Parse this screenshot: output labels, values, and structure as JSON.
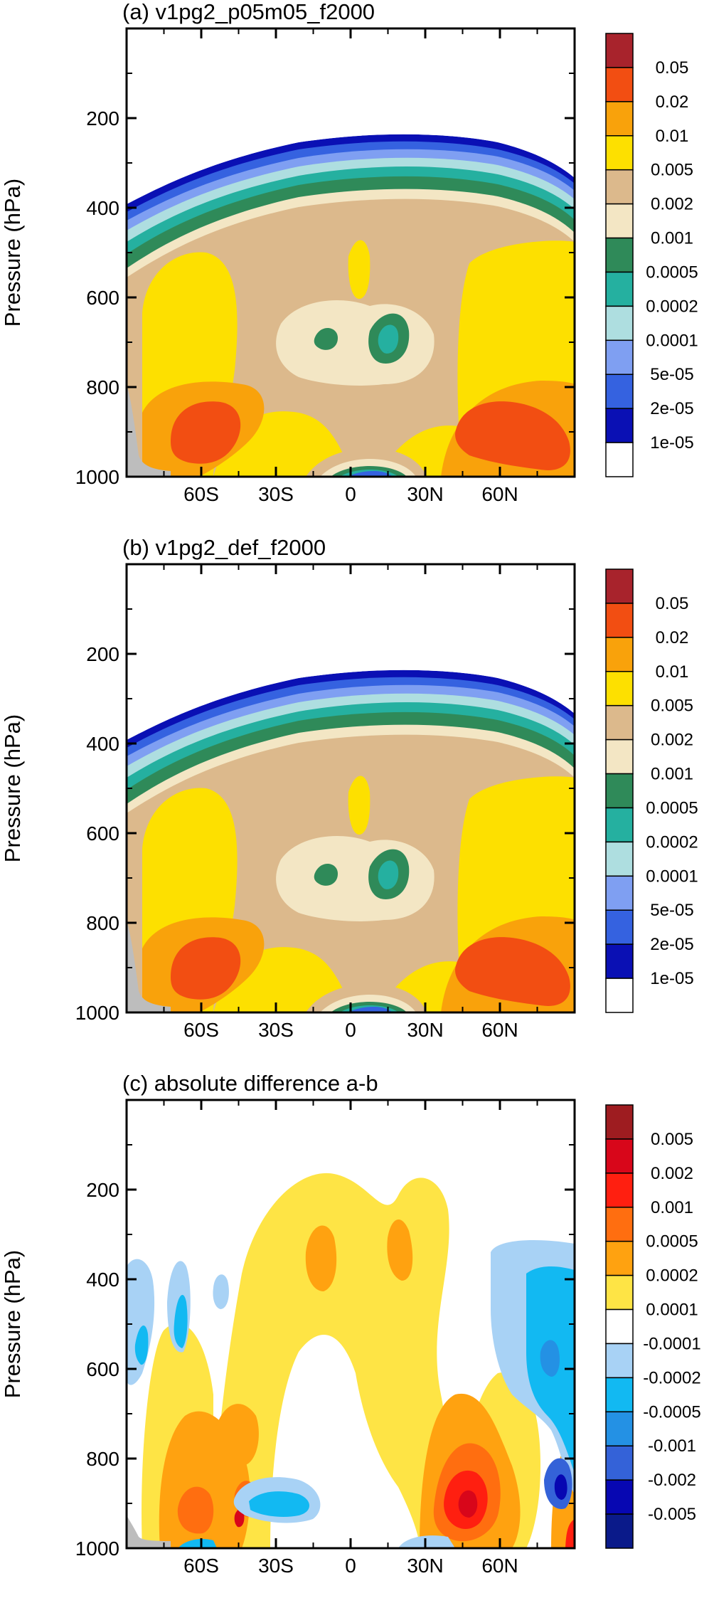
{
  "chart_data": [
    {
      "type": "heatmap",
      "title": "(a) v1pg2_p05m05_f2000",
      "ylabel": "Pressure (hPa)",
      "y_ticks": [
        "200",
        "400",
        "600",
        "800",
        "1000"
      ],
      "x_ticks": [
        "60S",
        "30S",
        "0",
        "30N",
        "60N"
      ],
      "y_axis": "Pressure (hPa), 1000 at bottom",
      "colorbar": {
        "labels": [
          "0.05",
          "0.02",
          "0.01",
          "0.005",
          "0.002",
          "0.001",
          "0.0005",
          "0.0002",
          "0.0001",
          "5e-05",
          "2e-05",
          "1e-05"
        ],
        "colors": [
          "#a8232c",
          "#f24e12",
          "#f9a20b",
          "#fde000",
          "#dcb98c",
          "#f3e6c4",
          "#2f8a59",
          "#25b0a0",
          "#aedee0",
          "#7f9ff2",
          "#3562e0",
          "#0a10b4",
          "#ffffff"
        ]
      }
    },
    {
      "type": "heatmap",
      "title": "(b) v1pg2_def_f2000",
      "ylabel": "Pressure (hPa)",
      "y_ticks": [
        "200",
        "400",
        "600",
        "800",
        "1000"
      ],
      "x_ticks": [
        "60S",
        "30S",
        "0",
        "30N",
        "60N"
      ],
      "colorbar": {
        "labels": [
          "0.05",
          "0.02",
          "0.01",
          "0.005",
          "0.002",
          "0.001",
          "0.0005",
          "0.0002",
          "0.0001",
          "5e-05",
          "2e-05",
          "1e-05"
        ],
        "colors": [
          "#a8232c",
          "#f24e12",
          "#f9a20b",
          "#fde000",
          "#dcb98c",
          "#f3e6c4",
          "#2f8a59",
          "#25b0a0",
          "#aedee0",
          "#7f9ff2",
          "#3562e0",
          "#0a10b4",
          "#ffffff"
        ]
      }
    },
    {
      "type": "heatmap",
      "title": "(c) absolute difference a-b",
      "ylabel": "Pressure (hPa)",
      "y_ticks": [
        "200",
        "400",
        "600",
        "800",
        "1000"
      ],
      "x_ticks": [
        "60S",
        "30S",
        "0",
        "30N",
        "60N"
      ],
      "colorbar": {
        "labels": [
          "0.005",
          "0.002",
          "0.001",
          "0.0005",
          "0.0002",
          "0.0001",
          "-0.0001",
          "-0.0002",
          "-0.0005",
          "-0.001",
          "-0.002",
          "-0.005"
        ],
        "colors": [
          "#9e1c20",
          "#d8061a",
          "#ff1f10",
          "#ff6e10",
          "#ffa210",
          "#fee445",
          "#ffffff",
          "#a8d2f5",
          "#12b9f2",
          "#2491e4",
          "#3462d8",
          "#0707b2",
          "#0a1a8a"
        ]
      }
    }
  ]
}
